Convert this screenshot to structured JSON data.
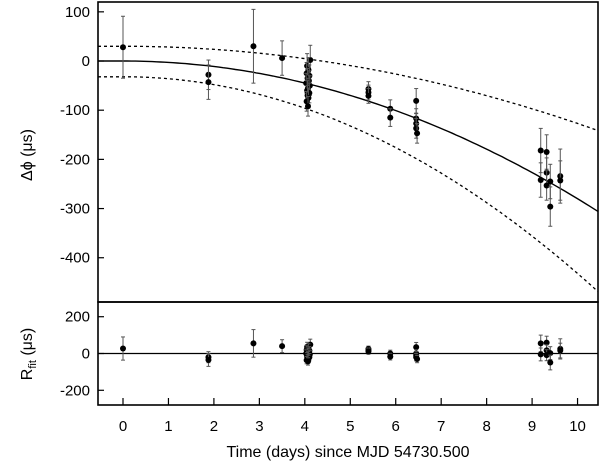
{
  "chart_data": [
    {
      "type": "scatter",
      "panel": "main",
      "ylabel": "Δϕ (μs)",
      "xlim": [
        -0.55,
        10.45
      ],
      "ylim": [
        -490,
        120
      ],
      "yticks": [
        100,
        0,
        -100,
        -200,
        -300,
        -400
      ],
      "ytick_labels": [
        "100",
        "0",
        "-100",
        "-200",
        "-300",
        "-400"
      ],
      "fit": {
        "name": "best fit",
        "style": "solid",
        "c0": 0,
        "c2": -2.8
      },
      "bounds": [
        {
          "name": "upper bound",
          "style": "dotted",
          "c0": 30,
          "c2": -1.57
        },
        {
          "name": "lower bound",
          "style": "dotted",
          "c0": -32,
          "c2": -4.0
        }
      ],
      "points": [
        {
          "x": 0.0,
          "y": 28,
          "err": 63
        },
        {
          "x": 1.88,
          "y": -28,
          "err": 30
        },
        {
          "x": 1.88,
          "y": -43,
          "err": 35
        },
        {
          "x": 2.87,
          "y": 30,
          "err": 75
        },
        {
          "x": 3.5,
          "y": 6,
          "err": 35
        },
        {
          "x": 4.12,
          "y": 2,
          "err": 30
        },
        {
          "x": 4.05,
          "y": -10,
          "err": 25
        },
        {
          "x": 4.08,
          "y": -18,
          "err": 25
        },
        {
          "x": 4.04,
          "y": -25,
          "err": 22
        },
        {
          "x": 4.1,
          "y": -30,
          "err": 22
        },
        {
          "x": 4.06,
          "y": -35,
          "err": 20
        },
        {
          "x": 4.09,
          "y": -40,
          "err": 20
        },
        {
          "x": 4.03,
          "y": -45,
          "err": 20
        },
        {
          "x": 4.11,
          "y": -50,
          "err": 20
        },
        {
          "x": 4.07,
          "y": -55,
          "err": 20
        },
        {
          "x": 4.05,
          "y": -60,
          "err": 20
        },
        {
          "x": 4.1,
          "y": -65,
          "err": 20
        },
        {
          "x": 4.06,
          "y": -70,
          "err": 20
        },
        {
          "x": 4.08,
          "y": -75,
          "err": 20
        },
        {
          "x": 4.04,
          "y": -82,
          "err": 20
        },
        {
          "x": 4.07,
          "y": -92,
          "err": 20
        },
        {
          "x": 5.4,
          "y": -57,
          "err": 15
        },
        {
          "x": 5.4,
          "y": -64,
          "err": 15
        },
        {
          "x": 5.4,
          "y": -71,
          "err": 15
        },
        {
          "x": 5.88,
          "y": -97,
          "err": 18
        },
        {
          "x": 5.88,
          "y": -115,
          "err": 18
        },
        {
          "x": 6.45,
          "y": -81,
          "err": 25
        },
        {
          "x": 6.45,
          "y": -117,
          "err": 20
        },
        {
          "x": 6.45,
          "y": -127,
          "err": 20
        },
        {
          "x": 6.45,
          "y": -137,
          "err": 20
        },
        {
          "x": 6.47,
          "y": -147,
          "err": 20
        },
        {
          "x": 9.19,
          "y": -182,
          "err": 45
        },
        {
          "x": 9.19,
          "y": -242,
          "err": 35
        },
        {
          "x": 9.32,
          "y": -185,
          "err": 35
        },
        {
          "x": 9.32,
          "y": -227,
          "err": 30
        },
        {
          "x": 9.32,
          "y": -253,
          "err": 30
        },
        {
          "x": 9.4,
          "y": -245,
          "err": 35
        },
        {
          "x": 9.4,
          "y": -296,
          "err": 40
        },
        {
          "x": 9.62,
          "y": -234,
          "err": 55
        },
        {
          "x": 9.62,
          "y": -243,
          "err": 40
        }
      ]
    },
    {
      "type": "scatter",
      "panel": "residuals",
      "ylabel_main": "R",
      "ylabel_sub": "fit",
      "ylabel_unit": " (μs)",
      "xlabel": "Time (days) since MJD 54730.500",
      "xlim": [
        -0.55,
        10.45
      ],
      "ylim": [
        -280,
        280
      ],
      "xticks": [
        0,
        1,
        2,
        3,
        4,
        5,
        6,
        7,
        8,
        9,
        10
      ],
      "xtick_labels": [
        "0",
        "1",
        "2",
        "3",
        "4",
        "5",
        "6",
        "7",
        "8",
        "9",
        "10"
      ],
      "yticks": [
        200,
        0,
        -200
      ],
      "ytick_labels": [
        "200",
        "0",
        "-200"
      ],
      "points": [
        {
          "x": 0.0,
          "y": 27,
          "err": 63
        },
        {
          "x": 1.88,
          "y": -20,
          "err": 30
        },
        {
          "x": 1.88,
          "y": -35,
          "err": 35
        },
        {
          "x": 2.87,
          "y": 55,
          "err": 75
        },
        {
          "x": 3.5,
          "y": 40,
          "err": 35
        },
        {
          "x": 4.12,
          "y": 48,
          "err": 30
        },
        {
          "x": 4.05,
          "y": 36,
          "err": 25
        },
        {
          "x": 4.08,
          "y": 28,
          "err": 25
        },
        {
          "x": 4.04,
          "y": 20,
          "err": 22
        },
        {
          "x": 4.1,
          "y": 15,
          "err": 22
        },
        {
          "x": 4.06,
          "y": 10,
          "err": 20
        },
        {
          "x": 4.09,
          "y": 5,
          "err": 20
        },
        {
          "x": 4.03,
          "y": 0,
          "err": 20
        },
        {
          "x": 4.11,
          "y": -5,
          "err": 20
        },
        {
          "x": 4.07,
          "y": -10,
          "err": 20
        },
        {
          "x": 4.05,
          "y": -15,
          "err": 20
        },
        {
          "x": 4.1,
          "y": -20,
          "err": 20
        },
        {
          "x": 4.06,
          "y": -25,
          "err": 20
        },
        {
          "x": 4.08,
          "y": -30,
          "err": 20
        },
        {
          "x": 4.04,
          "y": -36,
          "err": 20
        },
        {
          "x": 4.07,
          "y": -43,
          "err": 20
        },
        {
          "x": 5.4,
          "y": 25,
          "err": 15
        },
        {
          "x": 5.4,
          "y": 18,
          "err": 15
        },
        {
          "x": 5.4,
          "y": 11,
          "err": 15
        },
        {
          "x": 5.88,
          "y": 0,
          "err": 18
        },
        {
          "x": 5.88,
          "y": -17,
          "err": 18
        },
        {
          "x": 6.45,
          "y": 35,
          "err": 25
        },
        {
          "x": 6.45,
          "y": 0,
          "err": 20
        },
        {
          "x": 6.45,
          "y": -10,
          "err": 20
        },
        {
          "x": 6.45,
          "y": -20,
          "err": 20
        },
        {
          "x": 6.47,
          "y": -30,
          "err": 20
        },
        {
          "x": 9.19,
          "y": 55,
          "err": 45
        },
        {
          "x": 9.19,
          "y": -5,
          "err": 35
        },
        {
          "x": 9.32,
          "y": 59,
          "err": 35
        },
        {
          "x": 9.32,
          "y": 17,
          "err": 30
        },
        {
          "x": 9.32,
          "y": -9,
          "err": 30
        },
        {
          "x": 9.4,
          "y": 2,
          "err": 35
        },
        {
          "x": 9.4,
          "y": -49,
          "err": 40
        },
        {
          "x": 9.62,
          "y": 25,
          "err": 55
        },
        {
          "x": 9.62,
          "y": 16,
          "err": 40
        }
      ]
    }
  ]
}
